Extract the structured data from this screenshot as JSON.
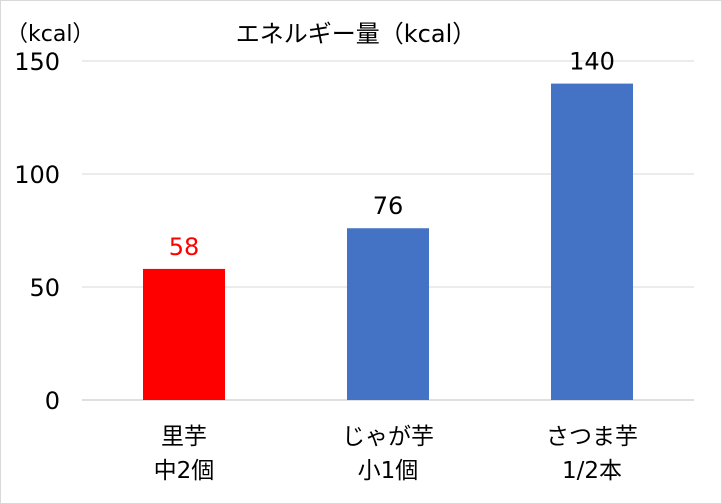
{
  "chart_data": {
    "type": "bar",
    "title": "エネルギー量（kcal）",
    "ylabel": "（kcal）",
    "xlabel": "",
    "ylim": [
      0,
      150
    ],
    "yticks": [
      0,
      50,
      100,
      150
    ],
    "grid": true,
    "categories": [
      {
        "line1": "里芋",
        "line2": "中2個"
      },
      {
        "line1": "じゃが芋",
        "line2": "小1個"
      },
      {
        "line1": "さつま芋",
        "line2": "1/2本"
      }
    ],
    "values": [
      58,
      76,
      140
    ],
    "colors": [
      "#ff0000",
      "#4472c4",
      "#4472c4"
    ],
    "label_colors": [
      "#ff0000",
      "#000000",
      "#000000"
    ]
  }
}
